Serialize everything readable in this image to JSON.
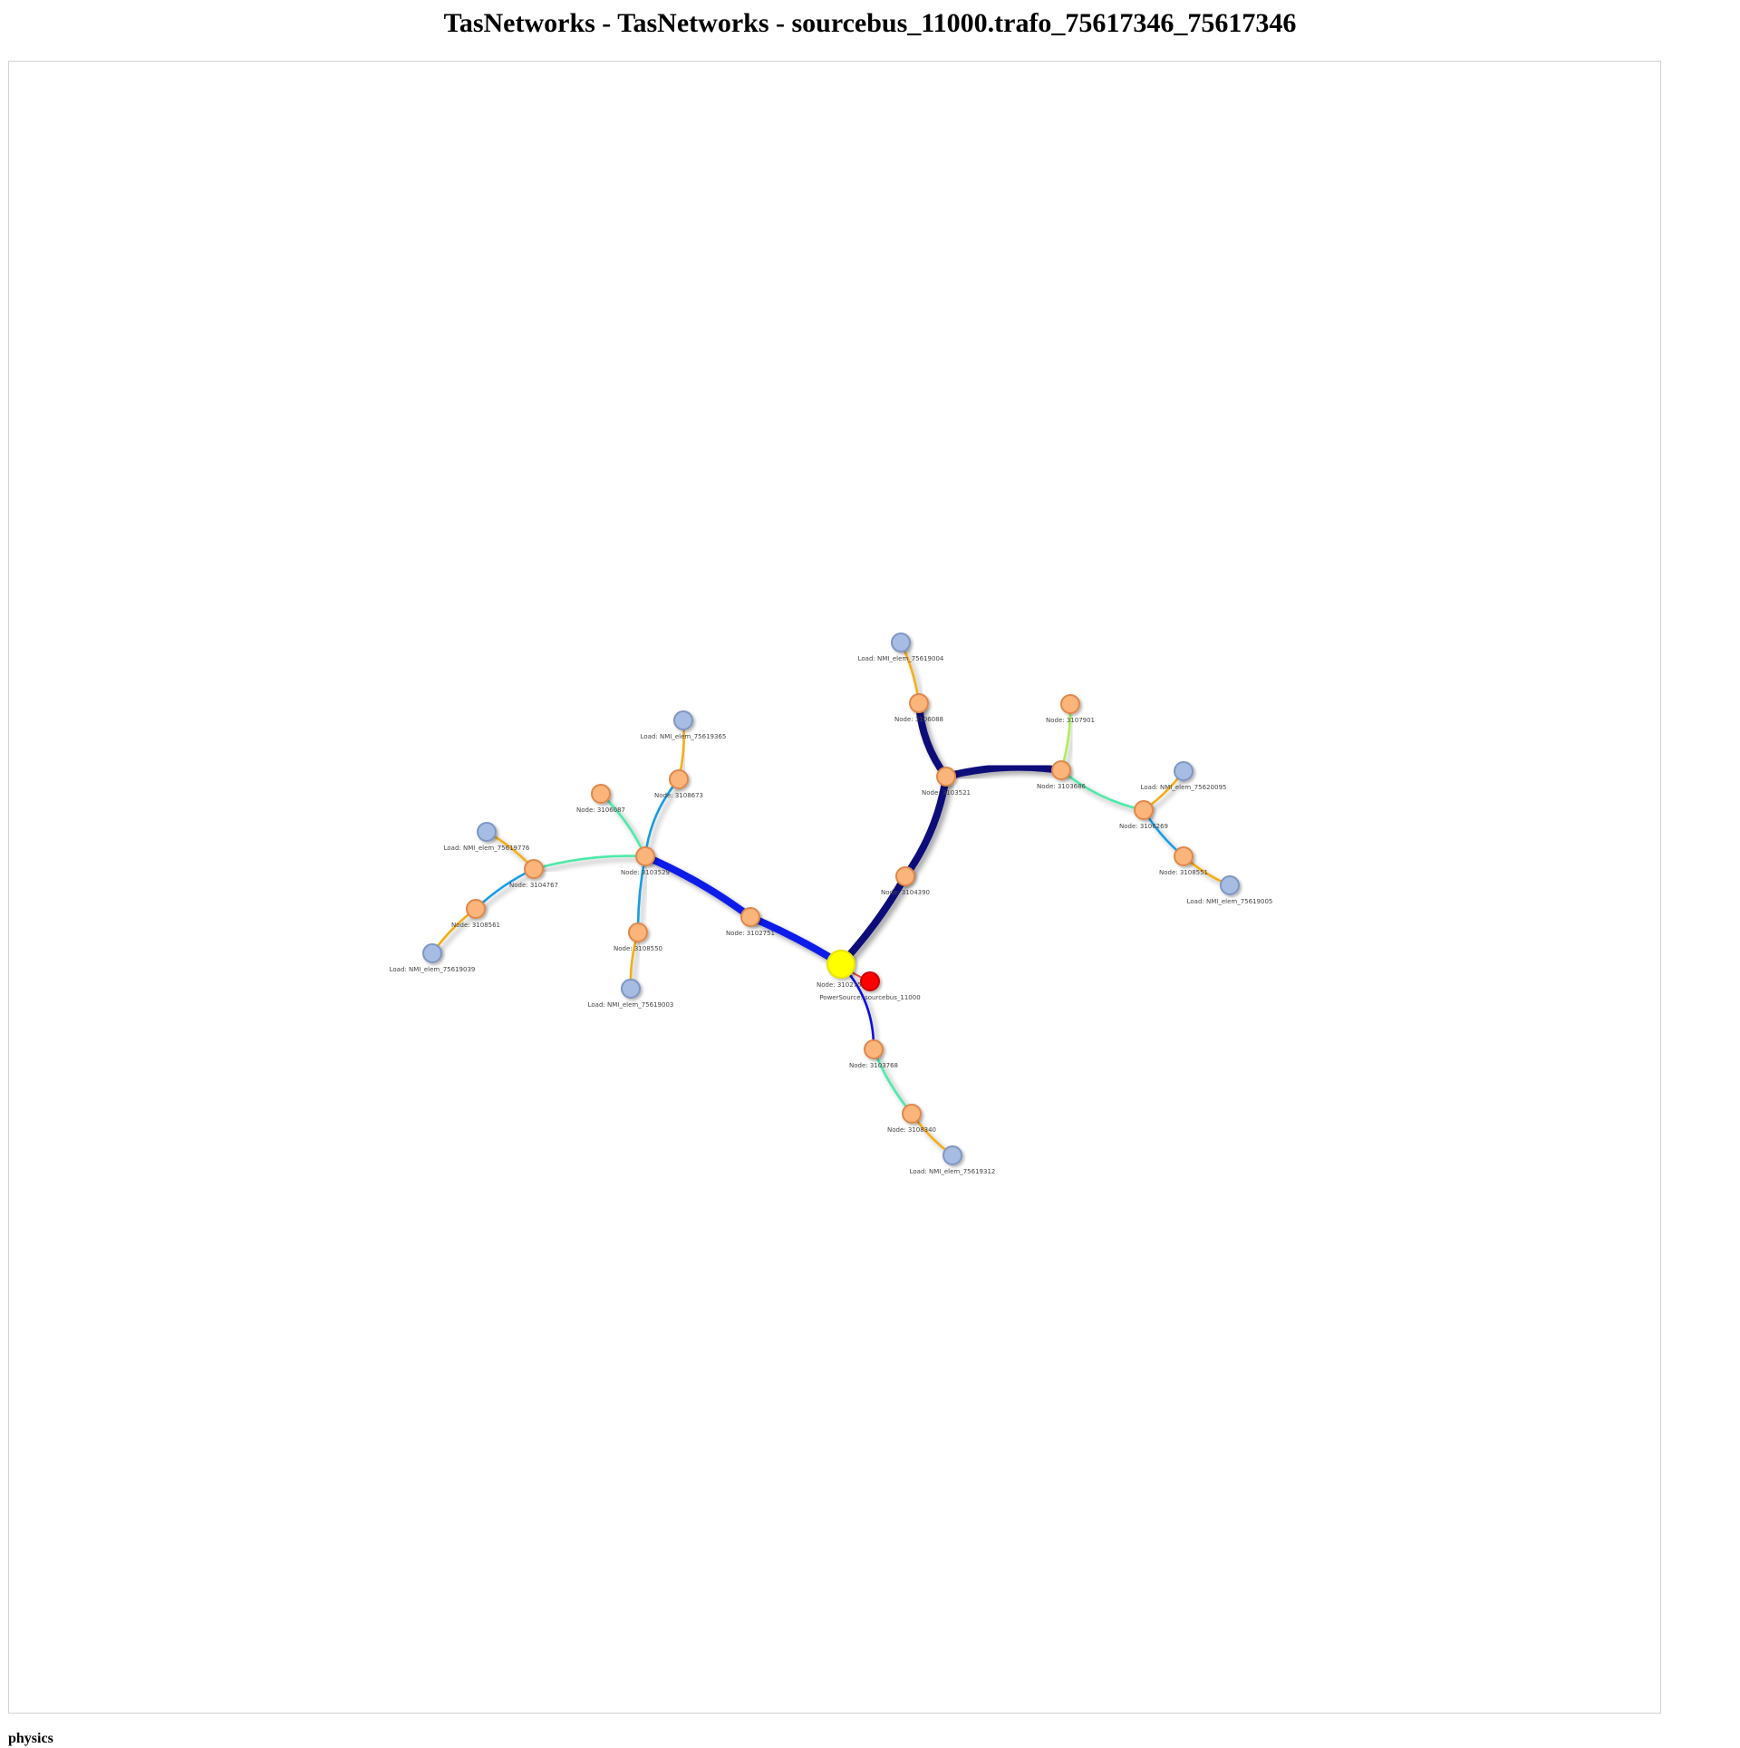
{
  "title": "TasNetworks - TasNetworks - sourcebus_11000.trafo_75617346_75617346",
  "footer": {
    "physics_label": "physics"
  },
  "colors": {
    "bus_fill": "#fbb57a",
    "bus_stroke": "#e0884a",
    "load_fill": "#a6bce2",
    "load_stroke": "#7f96c4",
    "source_fill": "#ff0000",
    "source_stroke": "#cc0000",
    "root_fill": "#ffff00",
    "root_stroke": "#e6e600"
  },
  "nodes": [
    {
      "id": "root",
      "label": "Node: 3102752",
      "kind": "root"
    },
    {
      "id": "src",
      "label": "PowerSource: sourcebus_11000",
      "kind": "source"
    },
    {
      "id": "n3102751",
      "label": "Node: 3102751",
      "kind": "bus"
    },
    {
      "id": "n3103529",
      "label": "Node: 3103529",
      "kind": "bus"
    },
    {
      "id": "n3106087",
      "label": "Node: 3106087",
      "kind": "bus"
    },
    {
      "id": "n3108673",
      "label": "Node: 3108673",
      "kind": "bus"
    },
    {
      "id": "l75619365",
      "label": "Load: NMI_elem_75619365",
      "kind": "load"
    },
    {
      "id": "n3104767",
      "label": "Node: 3104767",
      "kind": "bus"
    },
    {
      "id": "l75619776",
      "label": "Load: NMI_elem_75619776",
      "kind": "load"
    },
    {
      "id": "n3108561",
      "label": "Node: 3108561",
      "kind": "bus"
    },
    {
      "id": "l75619039",
      "label": "Load: NMI_elem_75619039",
      "kind": "load"
    },
    {
      "id": "n3108550",
      "label": "Node: 3108550",
      "kind": "bus"
    },
    {
      "id": "l75619003",
      "label": "Load: NMI_elem_75619003",
      "kind": "load"
    },
    {
      "id": "n3104390",
      "label": "Node: 3104390",
      "kind": "bus"
    },
    {
      "id": "n3103521",
      "label": "Node: 3103521",
      "kind": "bus"
    },
    {
      "id": "n3106088",
      "label": "Node: 3106088",
      "kind": "bus"
    },
    {
      "id": "l75619004",
      "label": "Load: NMI_elem_75619004",
      "kind": "load"
    },
    {
      "id": "n3103686",
      "label": "Node: 3103686",
      "kind": "bus"
    },
    {
      "id": "n3107901",
      "label": "Node: 3107901",
      "kind": "bus"
    },
    {
      "id": "n3106269",
      "label": "Node: 3106269",
      "kind": "bus"
    },
    {
      "id": "l75620095",
      "label": "Load: NMI_elem_75620095",
      "kind": "load"
    },
    {
      "id": "n3108551",
      "label": "Node: 3108551",
      "kind": "bus"
    },
    {
      "id": "l75619005",
      "label": "Load: NMI_elem_75619005",
      "kind": "load"
    },
    {
      "id": "n3103768",
      "label": "Node: 3103768",
      "kind": "bus"
    },
    {
      "id": "n3108340",
      "label": "Node: 3108340",
      "kind": "bus"
    },
    {
      "id": "l75619312",
      "label": "Load: NMI_elem_75619312",
      "kind": "load"
    }
  ],
  "edges": [
    {
      "from": "root",
      "to": "n3102751",
      "color": "#0b1be8",
      "level": 5
    },
    {
      "from": "n3102751",
      "to": "n3103529",
      "color": "#0b1be8",
      "level": 5
    },
    {
      "from": "n3103529",
      "to": "n3106087",
      "color": "#4eeaaa",
      "level": 2
    },
    {
      "from": "n3103529",
      "to": "n3108673",
      "color": "#199de3",
      "level": 2
    },
    {
      "from": "n3108673",
      "to": "l75619365",
      "color": "#f5ad19",
      "level": 2
    },
    {
      "from": "n3103529",
      "to": "n3104767",
      "color": "#4eeaaa",
      "level": 2
    },
    {
      "from": "n3104767",
      "to": "l75619776",
      "color": "#f5ad19",
      "level": 2
    },
    {
      "from": "n3104767",
      "to": "n3108561",
      "color": "#199de3",
      "level": 2
    },
    {
      "from": "n3108561",
      "to": "l75619039",
      "color": "#f5ad19",
      "level": 2
    },
    {
      "from": "n3103529",
      "to": "n3108550",
      "color": "#199de3",
      "level": 2
    },
    {
      "from": "n3108550",
      "to": "l75619003",
      "color": "#f5ad19",
      "level": 2
    },
    {
      "from": "root",
      "to": "n3104390",
      "color": "#0a0a7a",
      "level": 6
    },
    {
      "from": "n3104390",
      "to": "n3103521",
      "color": "#0a0a7a",
      "level": 6
    },
    {
      "from": "n3103521",
      "to": "n3106088",
      "color": "#0a0a7a",
      "level": 6
    },
    {
      "from": "n3106088",
      "to": "l75619004",
      "color": "#f5ad19",
      "level": 2
    },
    {
      "from": "n3103521",
      "to": "n3103686",
      "color": "#0a0a7a",
      "level": 6
    },
    {
      "from": "n3103686",
      "to": "n3107901",
      "color": "#aaf054",
      "level": 2
    },
    {
      "from": "n3103686",
      "to": "n3106269",
      "color": "#4eeaaa",
      "level": 2
    },
    {
      "from": "n3106269",
      "to": "l75620095",
      "color": "#f5ad19",
      "level": 2
    },
    {
      "from": "n3106269",
      "to": "n3108551",
      "color": "#199de3",
      "level": 2
    },
    {
      "from": "n3108551",
      "to": "l75619005",
      "color": "#f5ad19",
      "level": 2
    },
    {
      "from": "root",
      "to": "src",
      "color": "#e8423b",
      "level": 1
    },
    {
      "from": "root",
      "to": "n3103768",
      "color": "#1010e0",
      "level": 2
    },
    {
      "from": "n3103768",
      "to": "n3108340",
      "color": "#4eeaaa",
      "level": 2
    },
    {
      "from": "n3108340",
      "to": "l75619312",
      "color": "#f5ad19",
      "level": 2
    }
  ]
}
